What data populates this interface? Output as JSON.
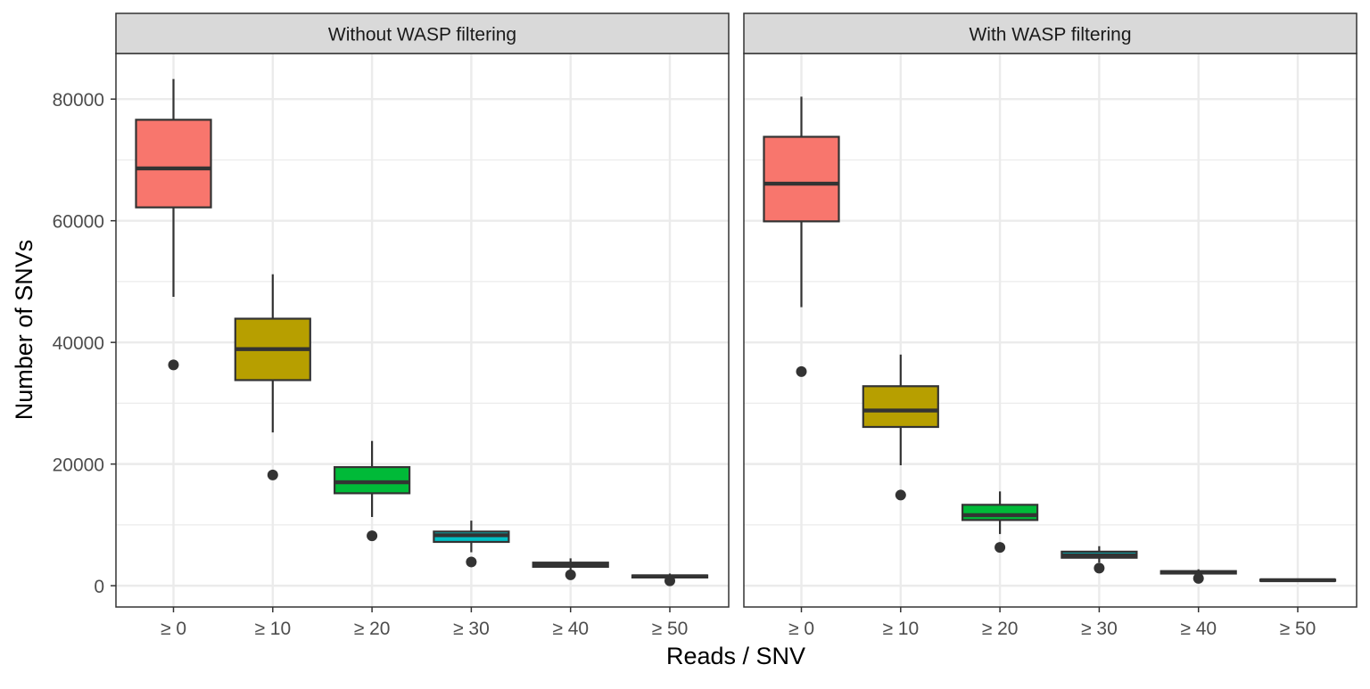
{
  "chart_data": {
    "type": "boxplot",
    "xlabel": "Reads / SNV",
    "ylabel": "Number of SNVs",
    "ylim": [
      -3500,
      87500
    ],
    "y_ticks": [
      0,
      20000,
      40000,
      60000,
      80000
    ],
    "y_tick_labels": [
      "0",
      "20000",
      "40000",
      "60000",
      "80000"
    ],
    "categories": [
      "≥ 0",
      "≥ 10",
      "≥ 20",
      "≥ 30",
      "≥ 40",
      "≥ 50"
    ],
    "category_colors": [
      "#F8766D",
      "#B79F00",
      "#00BA38",
      "#00BFC4",
      "#619CFF",
      "#F564E3"
    ],
    "grid": true,
    "legend": "none",
    "panels": [
      {
        "title": "Without WASP filtering",
        "boxes": [
          {
            "category": "≥ 0",
            "whisker_low": 47500,
            "q1": 62200,
            "median": 68600,
            "q3": 76600,
            "whisker_high": 83300,
            "outliers": [
              36300
            ]
          },
          {
            "category": "≥ 10",
            "whisker_low": 25200,
            "q1": 33800,
            "median": 38900,
            "q3": 43900,
            "whisker_high": 51200,
            "outliers": [
              18200
            ]
          },
          {
            "category": "≥ 20",
            "whisker_low": 11300,
            "q1": 15200,
            "median": 17000,
            "q3": 19500,
            "whisker_high": 23800,
            "outliers": [
              8200
            ]
          },
          {
            "category": "≥ 30",
            "whisker_low": 5500,
            "q1": 7200,
            "median": 8300,
            "q3": 8900,
            "whisker_high": 10700,
            "outliers": [
              3900
            ]
          },
          {
            "category": "≥ 40",
            "whisker_low": 2400,
            "q1": 3100,
            "median": 3500,
            "q3": 3800,
            "whisker_high": 4500,
            "outliers": [
              1800
            ]
          },
          {
            "category": "≥ 50",
            "whisker_low": 1100,
            "q1": 1350,
            "median": 1550,
            "q3": 1700,
            "whisker_high": 2000,
            "outliers": [
              800
            ]
          }
        ]
      },
      {
        "title": "With WASP filtering",
        "boxes": [
          {
            "category": "≥ 0",
            "whisker_low": 45800,
            "q1": 59900,
            "median": 66100,
            "q3": 73800,
            "whisker_high": 80400,
            "outliers": [
              35200
            ]
          },
          {
            "category": "≥ 10",
            "whisker_low": 19800,
            "q1": 26100,
            "median": 28800,
            "q3": 32800,
            "whisker_high": 38000,
            "outliers": [
              14900
            ]
          },
          {
            "category": "≥ 20",
            "whisker_low": 8500,
            "q1": 10800,
            "median": 11600,
            "q3": 13300,
            "whisker_high": 15500,
            "outliers": [
              6300
            ]
          },
          {
            "category": "≥ 30",
            "whisker_low": 3800,
            "q1": 4600,
            "median": 5000,
            "q3": 5600,
            "whisker_high": 6500,
            "outliers": [
              2900
            ]
          },
          {
            "category": "≥ 40",
            "whisker_low": 1800,
            "q1": 2000,
            "median": 2200,
            "q3": 2400,
            "whisker_high": 2700,
            "outliers": [
              1200
            ]
          },
          {
            "category": "≥ 50",
            "whisker_low": 700,
            "q1": 800,
            "median": 900,
            "q3": 1000,
            "whisker_high": 1100,
            "outliers": []
          }
        ]
      }
    ]
  }
}
